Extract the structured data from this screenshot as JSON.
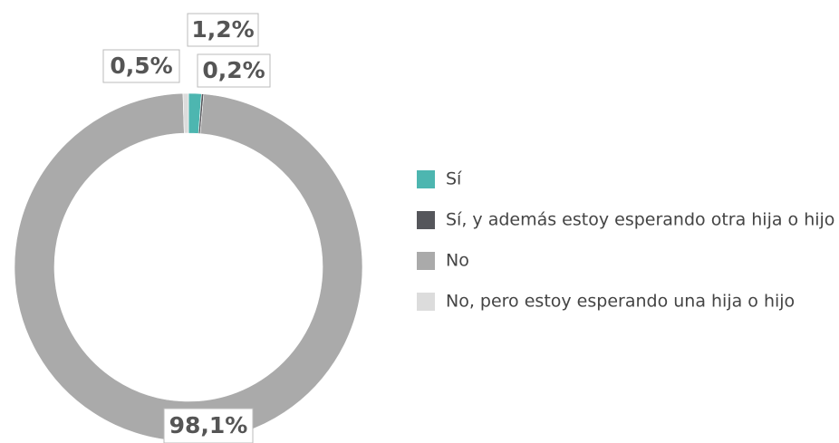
{
  "chart_data": {
    "type": "donut",
    "categories": [
      "Sí",
      "Sí, y además estoy esperando otra hija o hijo",
      "No",
      "No, pero estoy esperando una hija o hijo"
    ],
    "values": [
      1.2,
      0.2,
      98.1,
      0.5
    ],
    "value_labels": [
      "1,2%",
      "0,2%",
      "98,1%",
      "0,5%"
    ],
    "colors": [
      "#4db6b0",
      "#55565b",
      "#aaaaaa",
      "#dcdcdc"
    ],
    "legend": "right"
  }
}
